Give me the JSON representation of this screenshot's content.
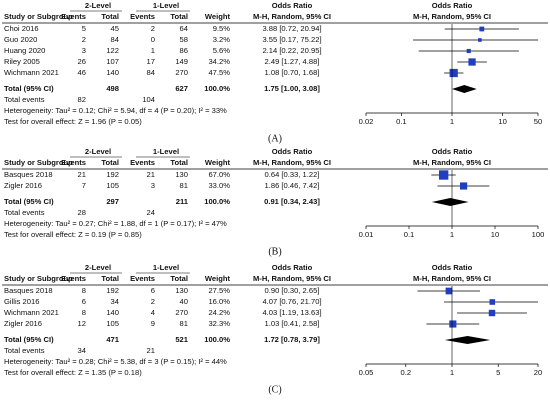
{
  "header": {
    "study": "Study or Subgroup",
    "group1": "2-Level",
    "group2": "1-Level",
    "events": "Events",
    "total": "Total",
    "weight": "Weight",
    "or": "Odds Ratio",
    "method": "M-H, Random, 95% CI",
    "events_label": "Total events"
  },
  "panels": [
    {
      "label": "(A)",
      "rows": [
        {
          "study": "Choi 2016",
          "e1": 5,
          "t1": 45,
          "e2": 2,
          "t2": 64,
          "weight": {
            "value": 9.5,
            "label": "9.5%"
          },
          "or_ci": "3.88 [0.72, 20.94]",
          "or": 3.88,
          "lo": 0.72,
          "hi": 20.94
        },
        {
          "study": "Guo 2020",
          "e1": 2,
          "t1": 84,
          "e2": 0,
          "t2": 58,
          "weight": {
            "value": 3.2,
            "label": "3.2%"
          },
          "or_ci": "3.55 [0.17, 75.22]",
          "or": 3.55,
          "lo": 0.17,
          "hi": 75.22
        },
        {
          "study": "Huang 2020",
          "e1": 3,
          "t1": 122,
          "e2": 1,
          "t2": 86,
          "weight": {
            "value": 5.6,
            "label": "5.6%"
          },
          "or_ci": "2.14 [0.22, 20.95]",
          "or": 2.14,
          "lo": 0.22,
          "hi": 20.95
        },
        {
          "study": "Riley 2005",
          "e1": 26,
          "t1": 107,
          "e2": 17,
          "t2": 149,
          "weight": {
            "value": 34.2,
            "label": "34.2%"
          },
          "or_ci": "2.49 [1.27, 4.88]",
          "or": 2.49,
          "lo": 1.27,
          "hi": 4.88
        },
        {
          "study": "Wichmann 2021",
          "e1": 46,
          "t1": 140,
          "e2": 84,
          "t2": 270,
          "weight": {
            "value": 47.5,
            "label": "47.5%"
          },
          "or_ci": "1.08 [0.70, 1.68]",
          "or": 1.08,
          "lo": 0.7,
          "hi": 1.68
        }
      ],
      "total": {
        "label": "Total (95% CI)",
        "t1": 498,
        "t2": 627,
        "weight": "100.0%",
        "or_ci": "1.75 [1.00, 3.08]",
        "or": 1.75,
        "lo": 1.0,
        "hi": 3.08
      },
      "events": [
        82,
        104
      ],
      "heterogeneity": "Heterogeneity: Tau² = 0.12; Chi² = 5.94, df = 4 (P = 0.20); I² = 33%",
      "test": "Test for overall effect: Z = 1.96 (P = 0.05)",
      "xlim": [
        0.02,
        50
      ],
      "xticks": [
        0.02,
        0.1,
        1,
        10,
        50
      ]
    },
    {
      "label": "(B)",
      "rows": [
        {
          "study": "Basques 2018",
          "e1": 21,
          "t1": 192,
          "e2": 21,
          "t2": 130,
          "weight": {
            "value": 67.0,
            "label": "67.0%"
          },
          "or_ci": "0.64 [0.33, 1.22]",
          "or": 0.64,
          "lo": 0.33,
          "hi": 1.22
        },
        {
          "study": "Zigler 2016",
          "e1": 7,
          "t1": 105,
          "e2": 3,
          "t2": 81,
          "weight": {
            "value": 33.0,
            "label": "33.0%"
          },
          "or_ci": "1.86 [0.46, 7.42]",
          "or": 1.86,
          "lo": 0.46,
          "hi": 7.42
        }
      ],
      "total": {
        "label": "Total (95% CI)",
        "t1": 297,
        "t2": 211,
        "weight": "100.0%",
        "or_ci": "0.91 [0.34, 2.43]",
        "or": 0.91,
        "lo": 0.34,
        "hi": 2.43
      },
      "events": [
        28,
        24
      ],
      "heterogeneity": "Heterogeneity: Tau² = 0.27; Chi² = 1.88, df = 1 (P = 0.17); I² = 47%",
      "test": "Test for overall effect: Z = 0.19 (P = 0.85)",
      "xlim": [
        0.01,
        100
      ],
      "xticks": [
        0.01,
        0.1,
        1,
        10,
        100
      ]
    },
    {
      "label": "(C)",
      "rows": [
        {
          "study": "Basques 2018",
          "e1": 8,
          "t1": 192,
          "e2": 6,
          "t2": 130,
          "weight": {
            "value": 27.5,
            "label": "27.5%"
          },
          "or_ci": "0.90 [0.30, 2.65]",
          "or": 0.9,
          "lo": 0.3,
          "hi": 2.65
        },
        {
          "study": "Gillis 2016",
          "e1": 6,
          "t1": 34,
          "e2": 2,
          "t2": 40,
          "weight": {
            "value": 16.0,
            "label": "16.0%"
          },
          "or_ci": "4.07 [0.76, 21.70]",
          "or": 4.07,
          "lo": 0.76,
          "hi": 21.7
        },
        {
          "study": "Wichmann 2021",
          "e1": 8,
          "t1": 140,
          "e2": 4,
          "t2": 270,
          "weight": {
            "value": 24.2,
            "label": "24.2%"
          },
          "or_ci": "4.03 [1.19, 13.63]",
          "or": 4.03,
          "lo": 1.19,
          "hi": 13.63
        },
        {
          "study": "Zigler 2016",
          "e1": 12,
          "t1": 105,
          "e2": 9,
          "t2": 81,
          "weight": {
            "value": 32.3,
            "label": "32.3%"
          },
          "or_ci": "1.03 [0.41, 2.58]",
          "or": 1.03,
          "lo": 0.41,
          "hi": 2.58
        }
      ],
      "total": {
        "label": "Total (95% CI)",
        "t1": 471,
        "t2": 521,
        "weight": "100.0%",
        "or_ci": "1.72 [0.78, 3.79]",
        "or": 1.72,
        "lo": 0.78,
        "hi": 3.79
      },
      "events": [
        34,
        21
      ],
      "heterogeneity": "Heterogeneity: Tau² = 0.28; Chi² = 5.38, df = 3 (P = 0.15); I² = 44%",
      "test": "Test for overall effect: Z = 1.35 (P = 0.18)",
      "xlim": [
        0.05,
        20
      ],
      "xticks": [
        0.05,
        0.2,
        1,
        5,
        20
      ]
    }
  ]
}
